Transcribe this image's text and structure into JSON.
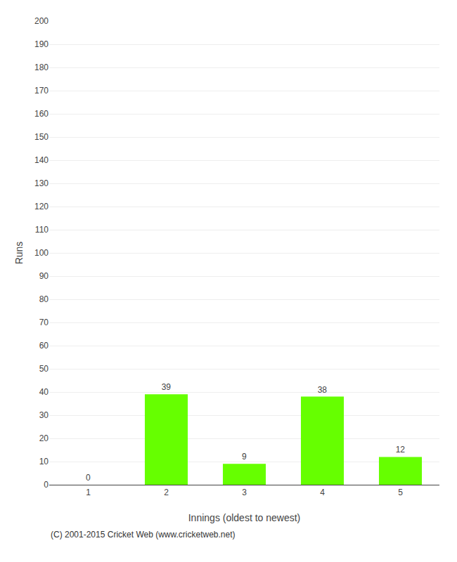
{
  "chart_data": {
    "type": "bar",
    "xlabel": "Innings (oldest to newest)",
    "ylabel": "Runs",
    "categories": [
      1,
      2,
      3,
      4,
      5
    ],
    "values": [
      0,
      39,
      9,
      38,
      12
    ],
    "color": "#66ff00",
    "ylim": [
      0,
      200
    ],
    "yticks": [
      0,
      10,
      20,
      30,
      40,
      50,
      60,
      70,
      80,
      90,
      100,
      110,
      120,
      130,
      140,
      150,
      160,
      170,
      180,
      190,
      200
    ],
    "grid": true,
    "data_labels": true,
    "annotations": [
      "(C) 2001-2015 Cricket Web (www.cricketweb.net)"
    ]
  }
}
